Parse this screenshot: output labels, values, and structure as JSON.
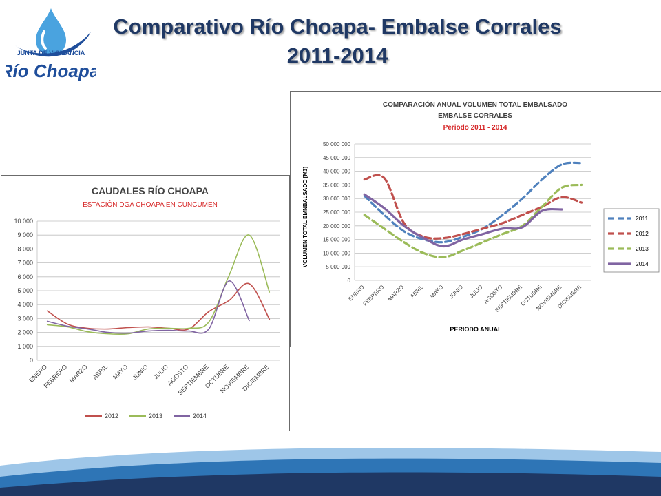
{
  "slide": {
    "title_line1": "Comparativo Río Choapa- Embalse  Corrales",
    "title_line2": "2011-2014"
  },
  "logo": {
    "line1": "JUNTA DE VIGILANCIA",
    "line2": "Río Choapa",
    "icon": "water-drop-icon"
  },
  "colors": {
    "title": "#1f3864",
    "s2011": "#4f81bd",
    "s2012": "#c0504d",
    "s2013": "#9bbb59",
    "s2014": "#8064a2",
    "chart_title": "#404040",
    "chart_subtitle": "#d62728"
  },
  "chart_data": [
    {
      "type": "line",
      "title": "CAUDALES RÍO CHOAPA",
      "subtitle": "ESTACIÓN DGA CHOAPA EN CUNCUMEN",
      "xlabel": "",
      "ylabel": "",
      "categories": [
        "ENERO",
        "FEBRERO",
        "MARZO",
        "ABRIL",
        "MAYO",
        "JUNIO",
        "JULIO",
        "AGOSTO",
        "SEPTIEMBRE",
        "OCTUBRE",
        "NOVIEMBRE",
        "DICIEMBRE"
      ],
      "ylim": [
        0,
        10000
      ],
      "yticks": [
        0,
        1000,
        2000,
        3000,
        4000,
        5000,
        6000,
        7000,
        8000,
        9000,
        10000
      ],
      "ytick_labels": [
        "0",
        "1 000",
        "2 000",
        "3 000",
        "4 000",
        "5 000",
        "6 000",
        "7 000",
        "8 000",
        "9 000",
        "10 000"
      ],
      "grid": true,
      "legend": "bottom",
      "series": [
        {
          "name": "2012",
          "color": "#c0504d",
          "values": [
            3550,
            2600,
            2300,
            2250,
            2350,
            2400,
            2300,
            2250,
            3500,
            4300,
            5500,
            2950
          ]
        },
        {
          "name": "2013",
          "color": "#9bbb59",
          "values": [
            2550,
            2400,
            2050,
            1900,
            1900,
            2250,
            2300,
            2300,
            2750,
            6100,
            9000,
            4900
          ]
        },
        {
          "name": "2014",
          "color": "#8064a2",
          "values": [
            2800,
            2450,
            2250,
            2000,
            1950,
            2100,
            2150,
            2100,
            2250,
            5700,
            2850,
            null
          ]
        }
      ]
    },
    {
      "type": "line",
      "title": "COMPARACIÓN ANUAL VOLUMEN TOTAL EMBALSADO",
      "title_line2": "EMBALSE CORRALES",
      "subtitle": "Periodo 2011 - 2014",
      "xlabel": "PERIODO ANUAL",
      "ylabel": "VOLUMEN TOTAL EMNBALSADO [M3]",
      "categories": [
        "ENERO",
        "FEBRERO",
        "MARZO",
        "ABRIL",
        "MAYO",
        "JUNIO",
        "JULIO",
        "AGOSTO",
        "SEPTIEMBRE",
        "OCTUBRE",
        "NOVIEMBRE",
        "DICIEMBRE"
      ],
      "ylim": [
        0,
        50000000
      ],
      "yticks": [
        0,
        5000000,
        10000000,
        15000000,
        20000000,
        25000000,
        30000000,
        35000000,
        40000000,
        45000000,
        50000000
      ],
      "ytick_labels": [
        "0",
        "5 000 000",
        "10 000 000",
        "15 000 000",
        "20 000 000",
        "25 000 000",
        "30 000 000",
        "35 000 000",
        "40 000 000",
        "45 000 000",
        "50 000 000"
      ],
      "grid": true,
      "legend": "right",
      "series": [
        {
          "name": "2011",
          "color": "#4f81bd",
          "dashed": true,
          "values": [
            31000000,
            24000000,
            18000000,
            15000000,
            14000000,
            16000000,
            19000000,
            24000000,
            30000000,
            37000000,
            42500000,
            43000000
          ]
        },
        {
          "name": "2012",
          "color": "#c0504d",
          "dashed": true,
          "values": [
            37000000,
            37500000,
            21000000,
            16000000,
            15500000,
            17000000,
            19000000,
            21000000,
            24000000,
            27000000,
            30500000,
            28500000
          ]
        },
        {
          "name": "2013",
          "color": "#9bbb59",
          "dashed": true,
          "values": [
            24000000,
            19000000,
            14000000,
            10000000,
            8500000,
            11000000,
            14000000,
            17000000,
            20000000,
            27000000,
            34000000,
            35000000
          ]
        },
        {
          "name": "2014",
          "color": "#8064a2",
          "dashed": false,
          "values": [
            31500000,
            26500000,
            20000000,
            15500000,
            12500000,
            15000000,
            17000000,
            19000000,
            19500000,
            25500000,
            26000000,
            null
          ]
        }
      ]
    }
  ]
}
